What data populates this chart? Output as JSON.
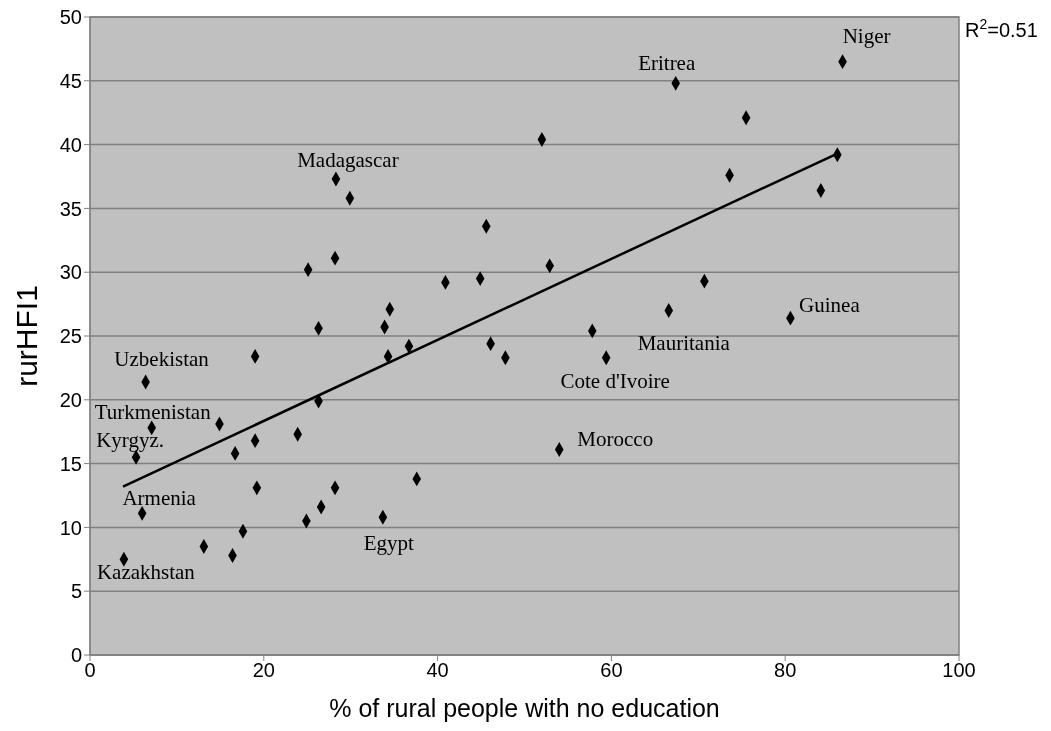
{
  "chart_data": {
    "type": "scatter",
    "xlabel": "% of rural people with no education",
    "ylabel": "rurHFI1",
    "xlim": [
      0,
      100
    ],
    "xticks": [
      0,
      20,
      40,
      60,
      80,
      100
    ],
    "ylim": [
      0,
      50
    ],
    "yticks": [
      0,
      5,
      10,
      15,
      20,
      25,
      30,
      35,
      40,
      45,
      50
    ],
    "grid": "y",
    "marker": "diamond",
    "series": [
      {
        "color": "#000000",
        "x": [
          86.6,
          67.4,
          75.5,
          52.0,
          86.0,
          73.6,
          84.1,
          52.9,
          70.7,
          66.6,
          80.6,
          57.8,
          28.3,
          29.9,
          45.6,
          28.2,
          25.1,
          40.9,
          44.9,
          34.5,
          26.3,
          33.9,
          6.4,
          19.0,
          34.3,
          36.7,
          46.1,
          47.8,
          26.3,
          7.1,
          14.9,
          23.9,
          19.0,
          16.7,
          5.3,
          37.6,
          19.2,
          28.2,
          26.6,
          6.0,
          24.9,
          33.7,
          17.6,
          13.1,
          16.4,
          3.9,
          59.4,
          54.0
        ],
        "values": [
          46.5,
          44.8,
          42.1,
          40.4,
          39.2,
          37.6,
          36.4,
          30.5,
          29.3,
          27.0,
          26.4,
          25.4,
          37.3,
          35.8,
          33.6,
          31.1,
          30.2,
          29.2,
          29.5,
          27.1,
          25.6,
          25.7,
          21.4,
          23.4,
          23.4,
          24.2,
          24.4,
          23.3,
          19.9,
          17.8,
          18.1,
          17.3,
          16.8,
          15.8,
          15.5,
          13.8,
          13.1,
          13.1,
          11.6,
          11.1,
          10.5,
          10.8,
          9.7,
          8.5,
          7.8,
          7.5,
          23.3,
          16.1
        ]
      },
      {
        "type": "line",
        "marker": "none",
        "color": "#000000",
        "x": [
          3.8,
          86.0
        ],
        "values": [
          13.2,
          39.3
        ]
      }
    ],
    "annotations": [
      {
        "text": "Niger",
        "x": 86.6,
        "y": 46.5
      },
      {
        "text": "Eritrea",
        "x": 67.4,
        "y": 44.8
      },
      {
        "text": "Madagascar",
        "x": 28.3,
        "y": 37.3
      },
      {
        "text": "Uzbekistan",
        "x": 6.4,
        "y": 21.4
      },
      {
        "text": "Turkmenistan",
        "x": 7.1,
        "y": 17.8
      },
      {
        "text": "Kyrgyz.",
        "x": 5.3,
        "y": 15.5
      },
      {
        "text": "Armenia",
        "x": 6.0,
        "y": 11.1
      },
      {
        "text": "Kazakhstan",
        "x": 3.9,
        "y": 7.5
      },
      {
        "text": "Egypt",
        "x": 33.7,
        "y": 10.8
      },
      {
        "text": "Morocco",
        "x": 54.0,
        "y": 16.1
      },
      {
        "text": "Cote d'Ivoire",
        "x": 59.4,
        "y": 23.3
      },
      {
        "text": "Mauritania",
        "x": 66.6,
        "y": 27.0
      },
      {
        "text": "Guinea",
        "x": 80.6,
        "y": 26.4
      },
      "R$^{2}$=0.51"
    ]
  }
}
